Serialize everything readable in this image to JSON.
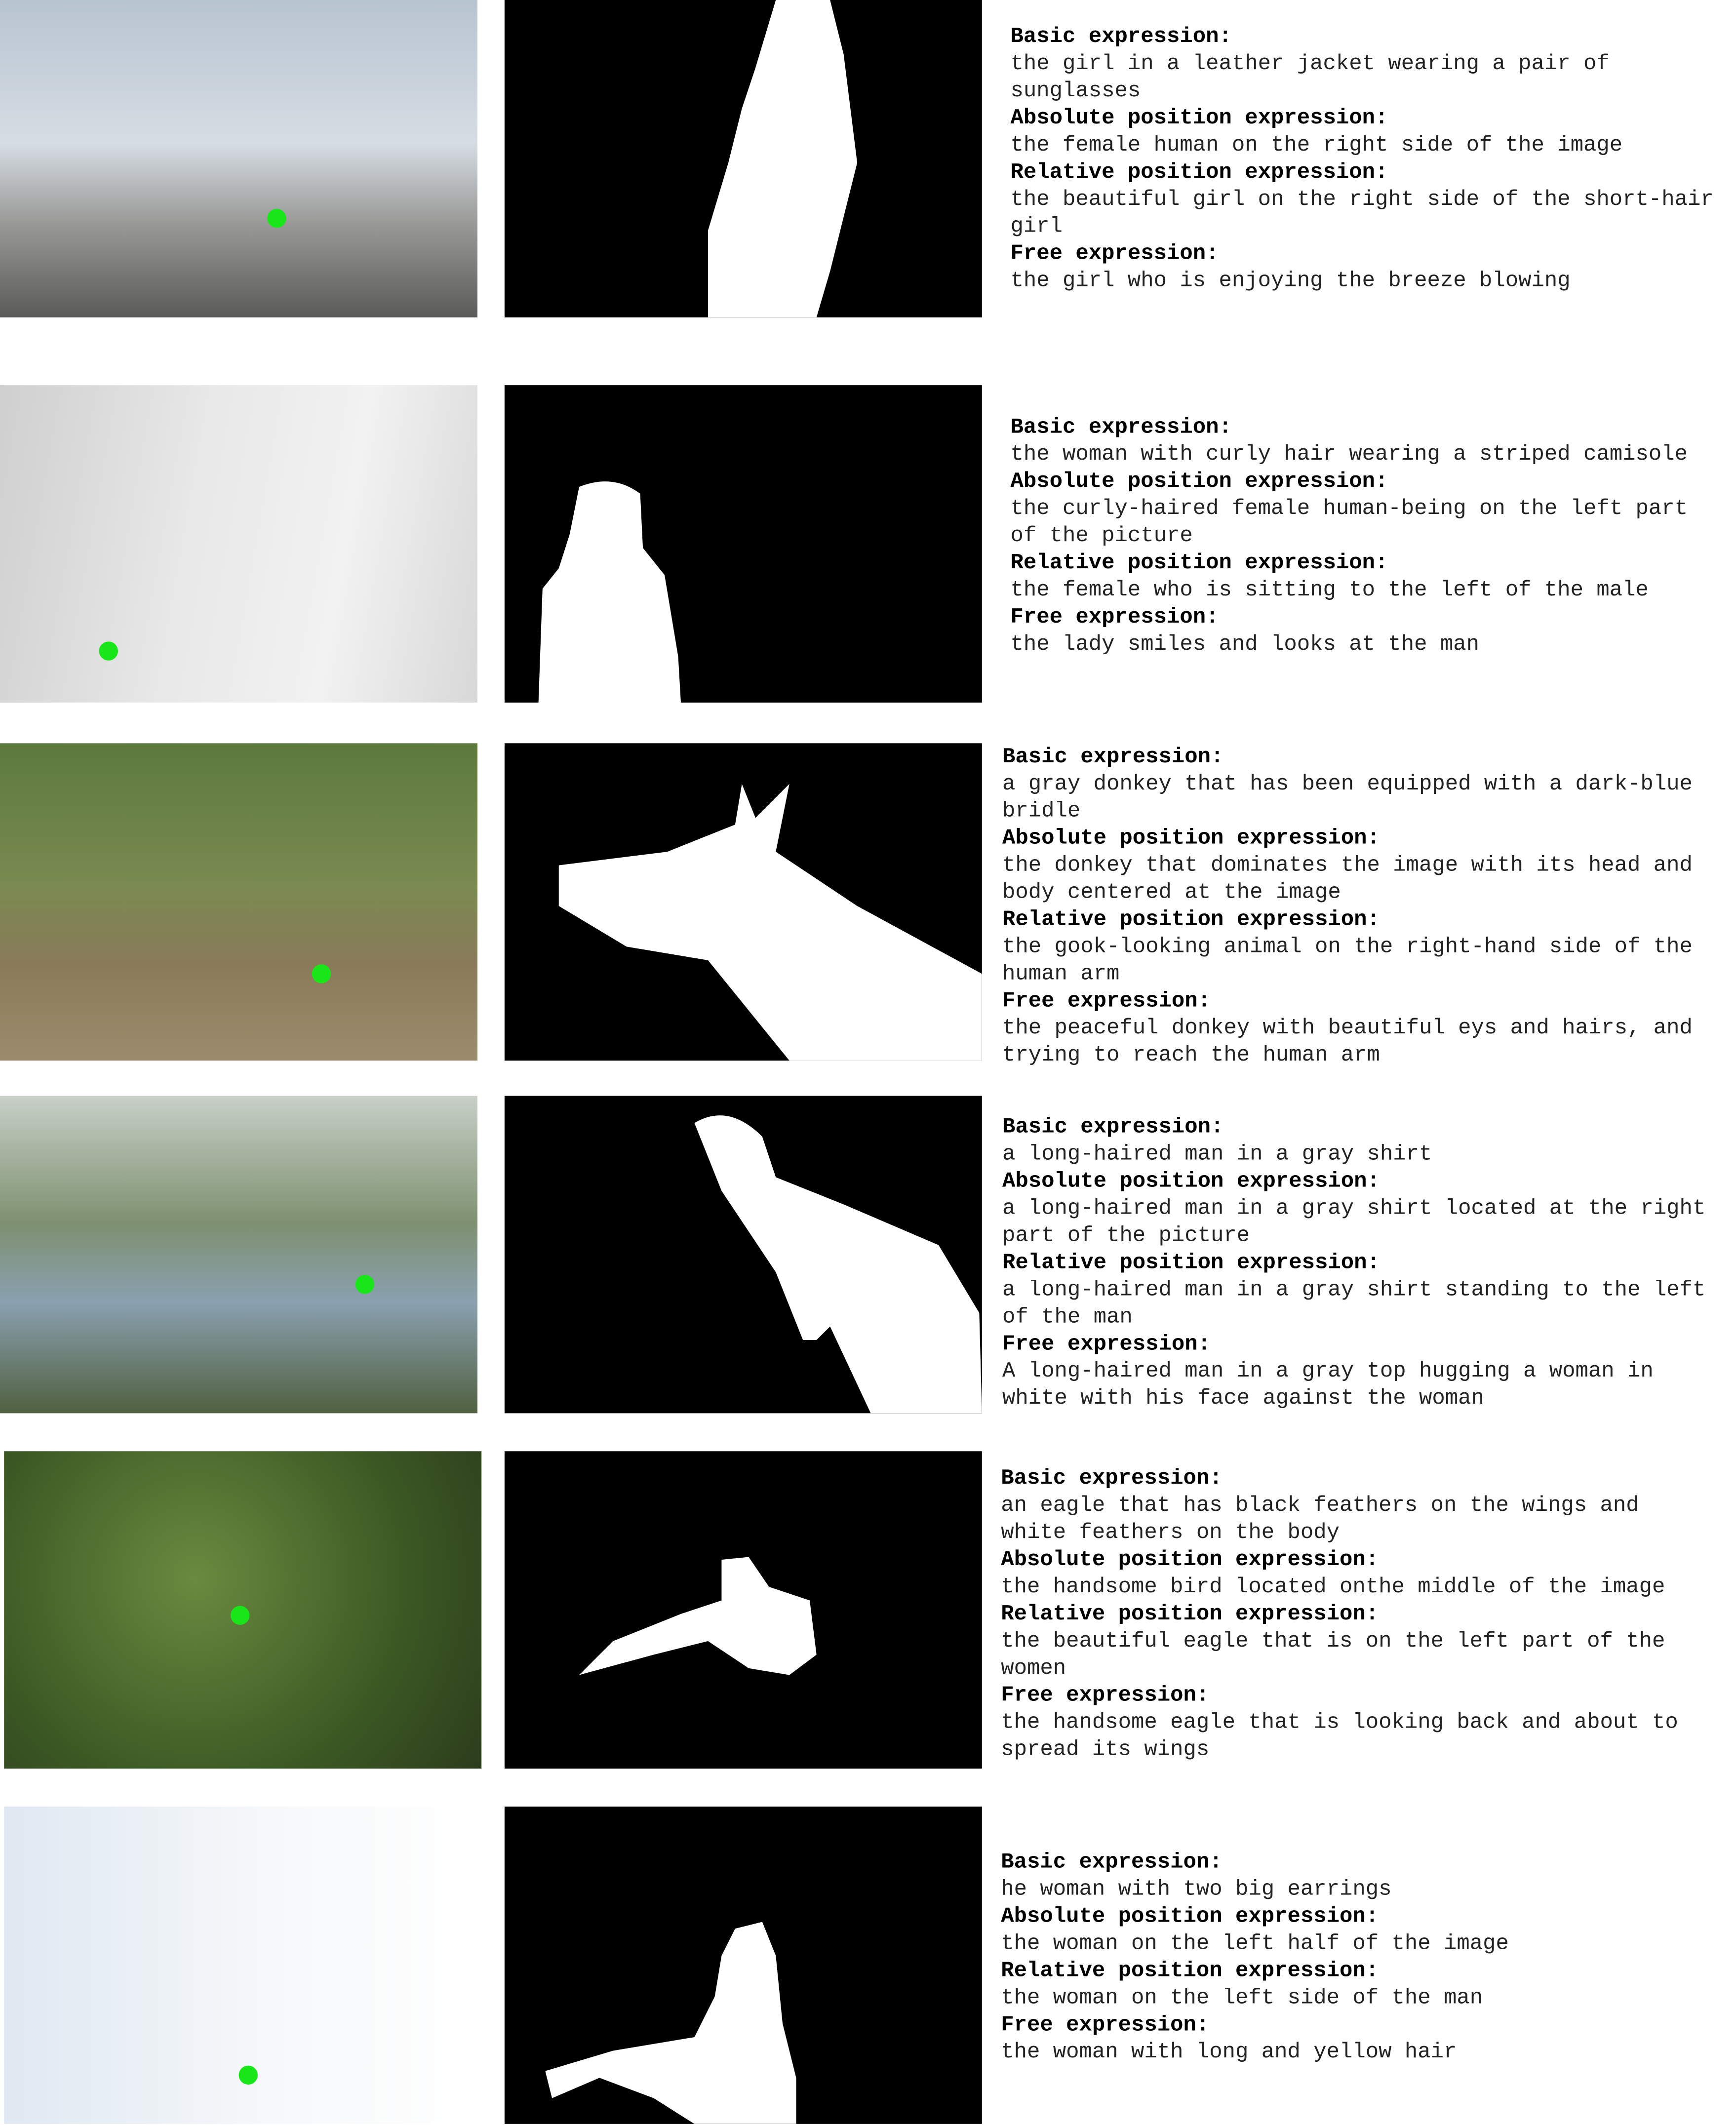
{
  "rows": [
    {
      "expressions": [
        {
          "label": "Basic expression:",
          "text": "the girl in a leather jacket wearing a pair of sunglasses"
        },
        {
          "label": "Absolute position expression:",
          "text": "the female human on the right side of the image"
        },
        {
          "label": "Relative position expression:",
          "text": "the beautiful girl on the right side of the short-hair girl"
        },
        {
          "label": "Free expression:",
          "text": "the girl who is enjoying the breeze blowing"
        }
      ]
    },
    {
      "expressions": [
        {
          "label": "Basic expression:",
          "text": "the woman with curly hair wearing a striped camisole"
        },
        {
          "label": "Absolute position expression:",
          "text": "the curly-haired female human-being on the left part of the picture"
        },
        {
          "label": "Relative position expression:",
          "text": "the female who is sitting to the left of the male"
        },
        {
          "label": "Free expression:",
          "text": "the lady smiles and looks at the man"
        }
      ]
    },
    {
      "expressions": [
        {
          "label": "Basic expression:",
          "text": "a gray donkey that has been equipped with a dark-blue bridle"
        },
        {
          "label": "Absolute position expression:",
          "text": "the donkey that dominates the image with its head and body centered at the image"
        },
        {
          "label": "Relative position expression:",
          "text": "the gook-looking animal on the right-hand side of the human arm"
        },
        {
          "label": "Free expression:",
          "text": "the peaceful donkey with beautiful eys and hairs, and trying to reach the human arm"
        }
      ]
    },
    {
      "expressions": [
        {
          "label": "Basic expression:",
          "text": "a long-haired man in a gray shirt"
        },
        {
          "label": "Absolute position expression:",
          "text": "a long-haired man in a gray shirt located at the right part of the picture"
        },
        {
          "label": "Relative position expression:",
          "text": "a long-haired man in a gray shirt standing to the left of the man"
        },
        {
          "label": "Free expression:",
          "text": "A long-haired man in a gray top hugging a woman in white with his face against the woman"
        }
      ]
    },
    {
      "expressions": [
        {
          "label": "Basic expression:",
          "text": "an eagle that has black feathers on the wings and white feathers on the body"
        },
        {
          "label": "Absolute position expression:",
          "text": "the handsome bird located onthe middle of the image"
        },
        {
          "label": "Relative position expression:",
          "text": "the beautiful eagle that is on the left part of the women"
        },
        {
          "label": "Free expression:",
          "text": "the handsome eagle that is looking back and about to spread its wings"
        }
      ]
    },
    {
      "expressions": [
        {
          "label": "Basic expression:",
          "text": "he woman with two big earrings"
        },
        {
          "label": "Absolute position expression:",
          "text": "the woman on the left half of the image"
        },
        {
          "label": "Relative position expression:",
          "text": "the woman on the left side of the man"
        },
        {
          "label": "Free expression:",
          "text": "the woman with long and yellow hair"
        }
      ]
    }
  ]
}
